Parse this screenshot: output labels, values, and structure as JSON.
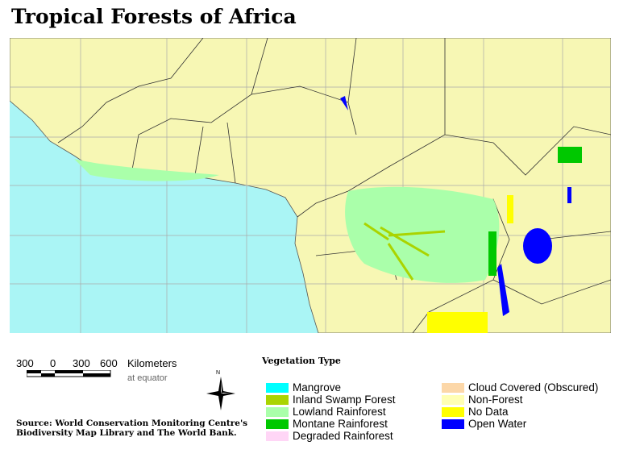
{
  "title": "Tropical Forests of Africa",
  "scale_bar": {
    "ticks": [
      "300",
      "0",
      "300",
      "600"
    ],
    "unit": "Kilometers",
    "note": "at equator"
  },
  "north_arrow": {
    "label": "N"
  },
  "source": [
    "Source: World Conservation Monitoring Centre's",
    "Biodiversity Map Library and The World Bank."
  ],
  "legend": {
    "title": "Vegetation Type",
    "items": [
      {
        "label": "Mangrove",
        "color": "#00ffff"
      },
      {
        "label": "Inland Swamp Forest",
        "color": "#aad400"
      },
      {
        "label": "Lowland Rainforest",
        "color": "#aaffaa"
      },
      {
        "label": "Montane Rainforest",
        "color": "#00c800"
      },
      {
        "label": "Degraded Rainforest",
        "color": "#ffd6f6"
      },
      {
        "label": "Cloud Covered (Obscured)",
        "color": "#fcd7a8"
      },
      {
        "label": "Non-Forest",
        "color": "#ffffb4"
      },
      {
        "label": "No Data",
        "color": "#ffff00"
      },
      {
        "label": "Open Water",
        "color": "#0000ff"
      }
    ]
  },
  "colors": {
    "ocean": "#aaf5f5",
    "land": "#f7f7b4",
    "grid": "#aaaaaa",
    "borders": "#333333"
  }
}
